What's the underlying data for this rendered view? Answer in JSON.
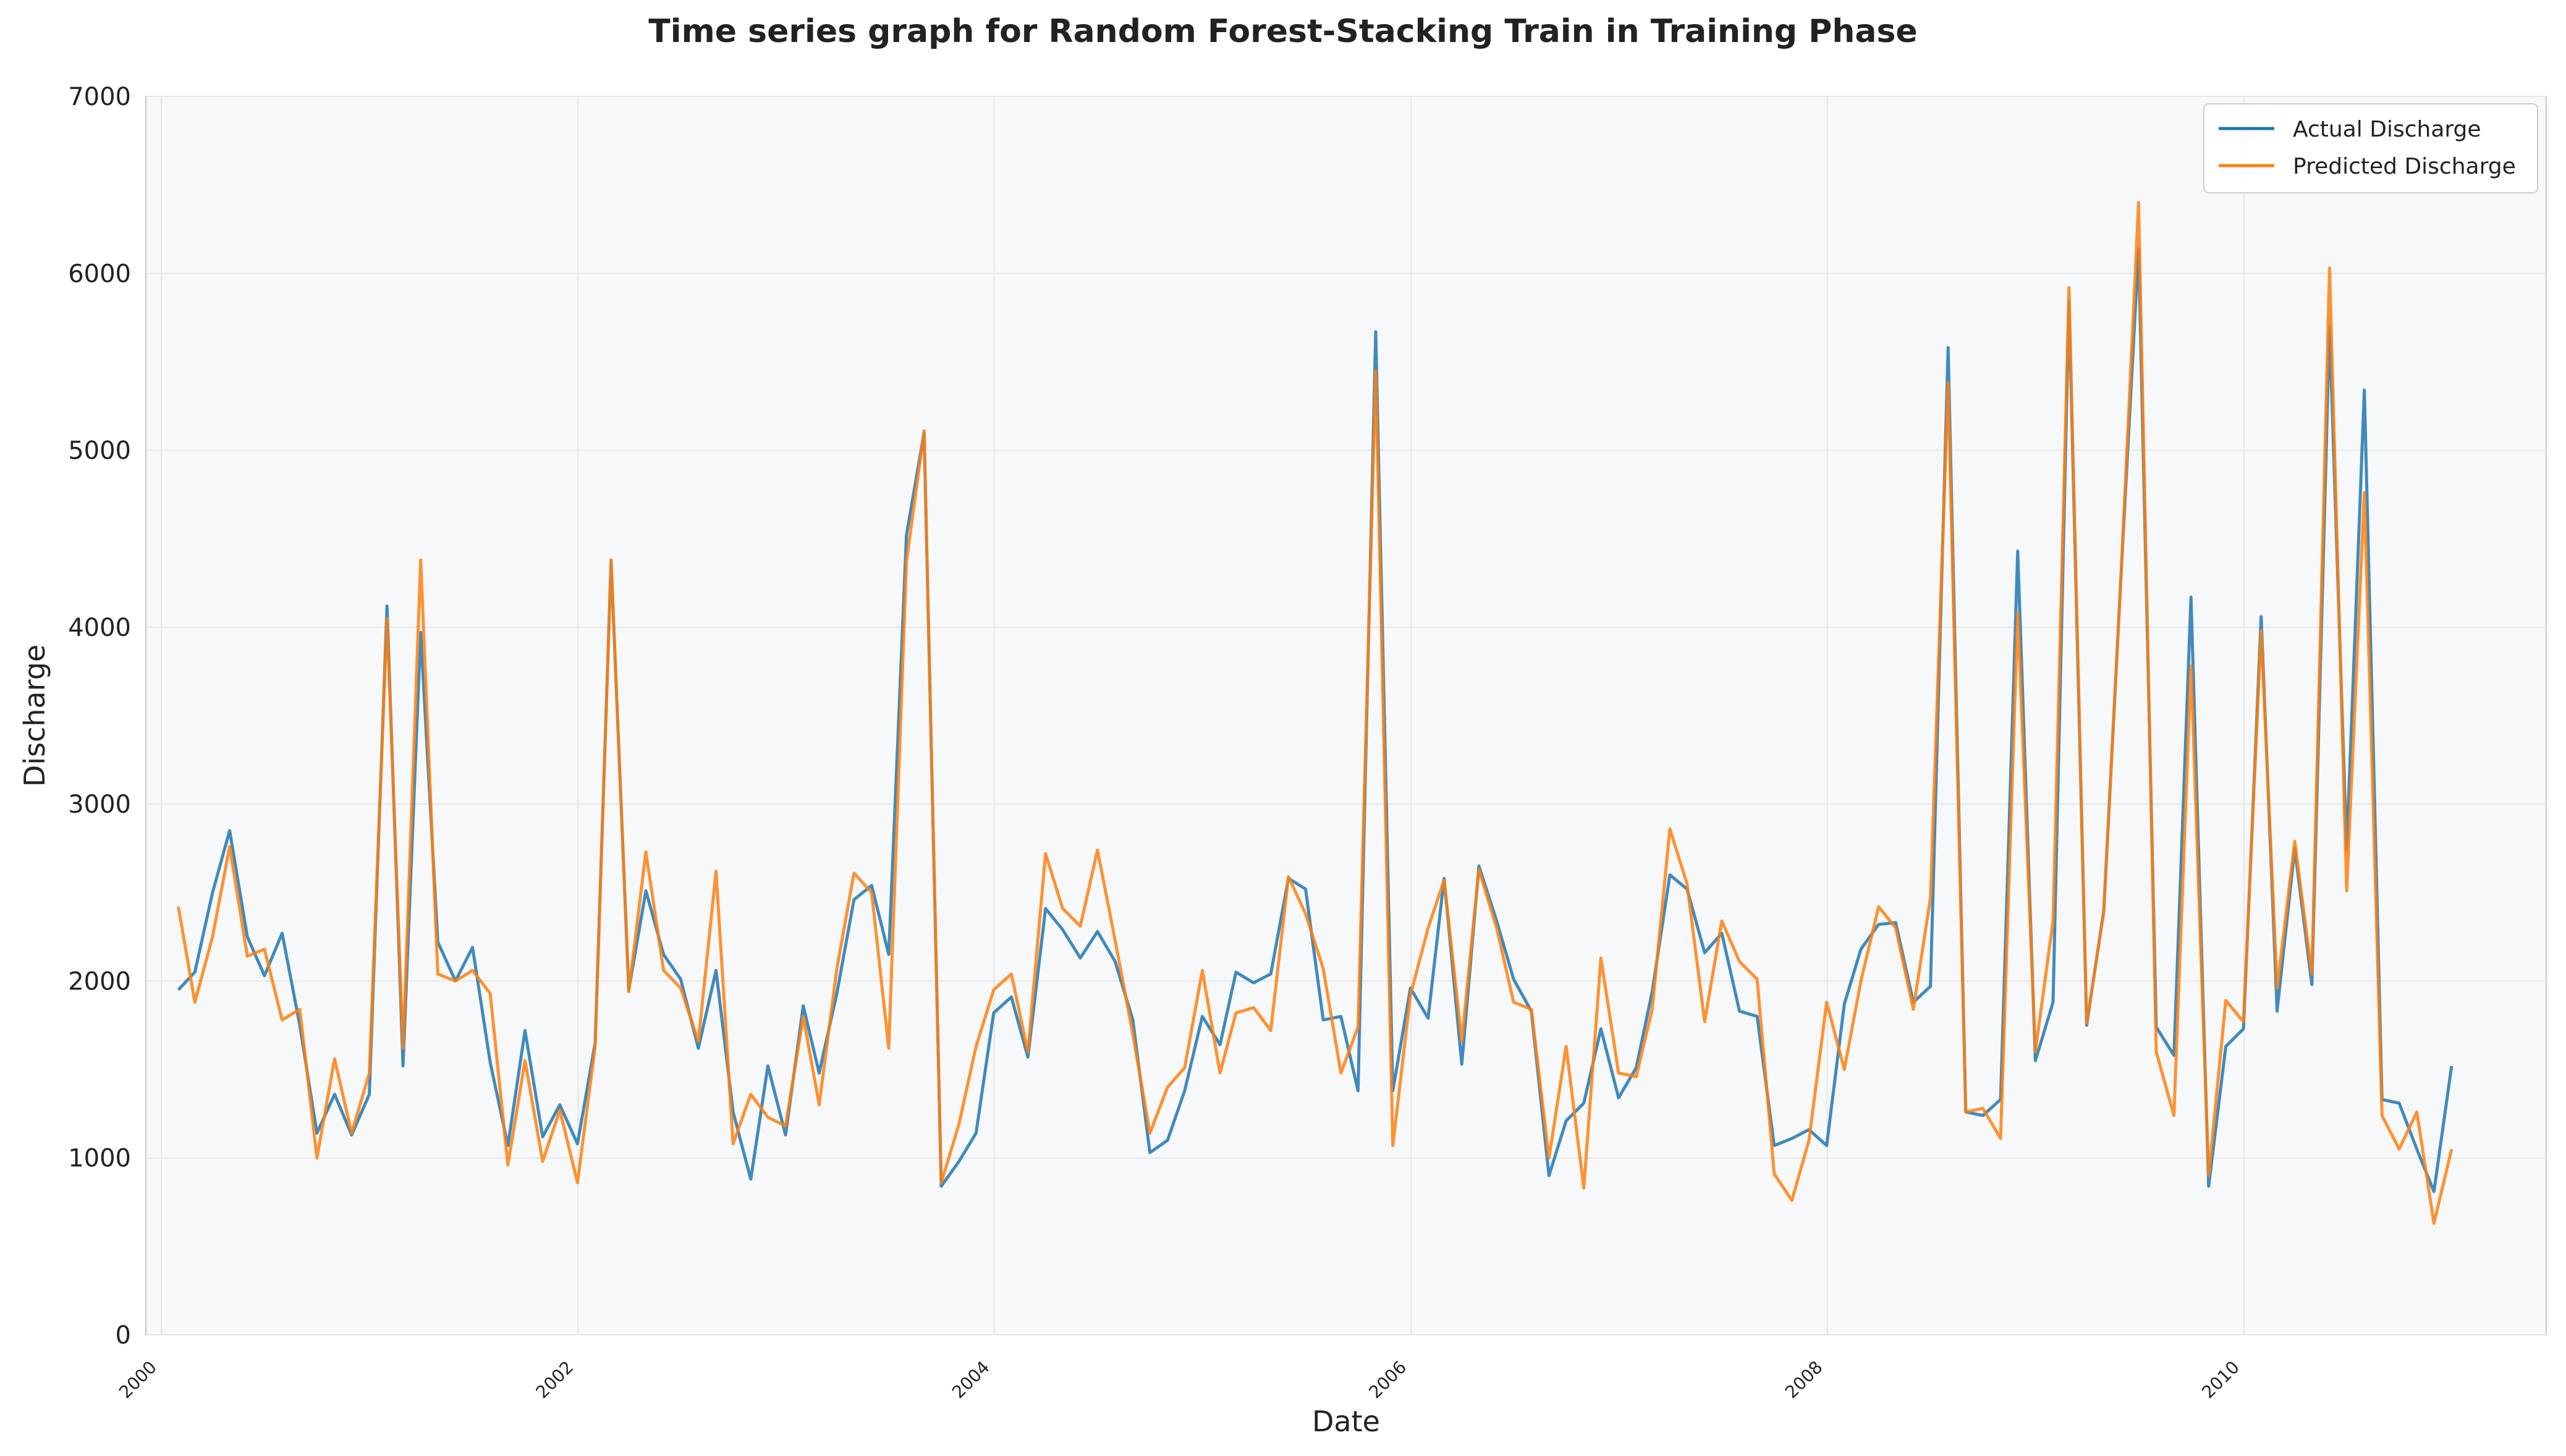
{
  "chart_data": {
    "type": "line",
    "title": "Time series graph for Random Forest-Stacking Train in Training Phase",
    "xlabel": "Date",
    "ylabel": "Discharge",
    "x_ticks": [
      "2000",
      "2002",
      "2004",
      "2006",
      "2008",
      "2010"
    ],
    "y_ticks": [
      "0",
      "1000",
      "2000",
      "3000",
      "4000",
      "5000",
      "6000",
      "7000"
    ],
    "xlim": [
      "1999-12-05",
      "2011-06-15"
    ],
    "ylim": [
      0,
      7000
    ],
    "grid": true,
    "legend_position": "top-right",
    "colors": {
      "actual": "#1f77b4",
      "predicted": "#ff7f0e",
      "plot_bg": "#f7f8f9",
      "grid": "#e4e6e8"
    },
    "dates": [
      "2000-01-31",
      "2000-02-29",
      "2000-03-31",
      "2000-04-30",
      "2000-05-31",
      "2000-06-30",
      "2000-07-31",
      "2000-08-31",
      "2000-09-30",
      "2000-10-31",
      "2000-11-30",
      "2000-12-31",
      "2001-01-31",
      "2001-02-28",
      "2001-03-31",
      "2001-04-30",
      "2001-05-31",
      "2001-06-30",
      "2001-07-31",
      "2001-08-31",
      "2001-09-30",
      "2001-10-31",
      "2001-11-30",
      "2001-12-31",
      "2002-01-31",
      "2002-02-28",
      "2002-03-31",
      "2002-04-30",
      "2002-05-31",
      "2002-06-30",
      "2002-07-31",
      "2002-08-31",
      "2002-09-30",
      "2002-10-31",
      "2002-11-30",
      "2002-12-31",
      "2003-01-31",
      "2003-02-28",
      "2003-03-31",
      "2003-04-30",
      "2003-05-31",
      "2003-06-30",
      "2003-07-31",
      "2003-08-31",
      "2003-09-30",
      "2003-10-31",
      "2003-11-30",
      "2003-12-31",
      "2004-01-31",
      "2004-02-29",
      "2004-03-31",
      "2004-04-30",
      "2004-05-31",
      "2004-06-30",
      "2004-07-31",
      "2004-08-31",
      "2004-09-30",
      "2004-10-31",
      "2004-11-30",
      "2004-12-31",
      "2005-01-31",
      "2005-02-28",
      "2005-03-31",
      "2005-04-30",
      "2005-05-31",
      "2005-06-30",
      "2005-07-31",
      "2005-08-31",
      "2005-09-30",
      "2005-10-31",
      "2005-11-30",
      "2005-12-31",
      "2006-01-31",
      "2006-02-28",
      "2006-03-31",
      "2006-04-30",
      "2006-05-31",
      "2006-06-30",
      "2006-07-31",
      "2006-08-31",
      "2006-09-30",
      "2006-10-31",
      "2006-11-30",
      "2006-12-31",
      "2007-01-31",
      "2007-02-28",
      "2007-03-31",
      "2007-04-30",
      "2007-05-31",
      "2007-06-30",
      "2007-07-31",
      "2007-08-31",
      "2007-09-30",
      "2007-10-31",
      "2007-11-30",
      "2007-12-31",
      "2008-01-31",
      "2008-02-29",
      "2008-03-31",
      "2008-04-30",
      "2008-05-31",
      "2008-06-30",
      "2008-07-31",
      "2008-08-31",
      "2008-09-30",
      "2008-10-31",
      "2008-11-30",
      "2008-12-31",
      "2009-01-31",
      "2009-02-28",
      "2009-03-31",
      "2009-04-30",
      "2009-05-31",
      "2009-06-30",
      "2009-07-31",
      "2009-08-31",
      "2009-09-30",
      "2009-10-31",
      "2009-11-30",
      "2009-12-31",
      "2010-01-31",
      "2010-02-28",
      "2010-03-31",
      "2010-04-30",
      "2010-05-31",
      "2010-06-30",
      "2010-07-31",
      "2010-08-31",
      "2010-09-30",
      "2010-10-31",
      "2010-11-30",
      "2010-12-31"
    ],
    "series": [
      {
        "name": "Actual Discharge",
        "values": [
          1950,
          2050,
          2500,
          2850,
          2250,
          2030,
          2270,
          1750,
          1140,
          1360,
          1130,
          1360,
          4120,
          1520,
          3970,
          2220,
          2000,
          2190,
          1540,
          1070,
          1720,
          1120,
          1300,
          1080,
          1650,
          4370,
          1950,
          2510,
          2150,
          2010,
          1620,
          2060,
          1260,
          880,
          1520,
          1130,
          1860,
          1480,
          1930,
          2460,
          2540,
          2150,
          4520,
          5100,
          840,
          980,
          1140,
          1820,
          1910,
          1570,
          2410,
          2290,
          2130,
          2280,
          2110,
          1780,
          1030,
          1100,
          1380,
          1800,
          1640,
          2050,
          1990,
          2040,
          2580,
          2520,
          1780,
          1800,
          1380,
          5670,
          1380,
          1960,
          1790,
          2580,
          1530,
          2650,
          2340,
          2010,
          1830,
          900,
          1210,
          1310,
          1730,
          1340,
          1510,
          1940,
          2600,
          2520,
          2160,
          2270,
          1830,
          1800,
          1070,
          1110,
          1160,
          1070,
          1870,
          2180,
          2320,
          2330,
          1880,
          1970,
          5580,
          1260,
          1240,
          1330,
          4430,
          1550,
          1880,
          5840,
          1750,
          2400,
          4340,
          6140,
          1740,
          1580,
          4170,
          840,
          1630,
          1730,
          4060,
          1830,
          2750,
          1980,
          5700,
          2740,
          5340,
          1330,
          1310,
          1050,
          810,
          1520
        ]
      },
      {
        "name": "Predicted Discharge",
        "values": [
          2420,
          1880,
          2250,
          2760,
          2140,
          2180,
          1780,
          1840,
          1000,
          1560,
          1140,
          1480,
          4050,
          1620,
          4380,
          2040,
          2000,
          2060,
          1930,
          960,
          1550,
          980,
          1270,
          860,
          1630,
          4380,
          1940,
          2730,
          2060,
          1960,
          1660,
          2620,
          1080,
          1360,
          1230,
          1180,
          1800,
          1300,
          2070,
          2610,
          2500,
          1620,
          4370,
          5110,
          860,
          1190,
          1630,
          1950,
          2040,
          1600,
          2720,
          2410,
          2310,
          2740,
          2230,
          1700,
          1140,
          1400,
          1510,
          2060,
          1480,
          1820,
          1850,
          1720,
          2590,
          2380,
          2070,
          1480,
          1740,
          5450,
          1070,
          1920,
          2300,
          2570,
          1660,
          2630,
          2300,
          1880,
          1840,
          1000,
          1630,
          830,
          2130,
          1480,
          1460,
          1840,
          2860,
          2550,
          1770,
          2340,
          2110,
          2010,
          910,
          760,
          1100,
          1880,
          1500,
          2000,
          2420,
          2300,
          1840,
          2470,
          5380,
          1260,
          1280,
          1110,
          4080,
          1600,
          2340,
          5920,
          1760,
          2390,
          4340,
          6400,
          1600,
          1240,
          3780,
          900,
          1890,
          1770,
          3980,
          1960,
          2790,
          2040,
          6030,
          2510,
          4760,
          1240,
          1050,
          1260,
          630,
          1050
        ]
      }
    ]
  }
}
